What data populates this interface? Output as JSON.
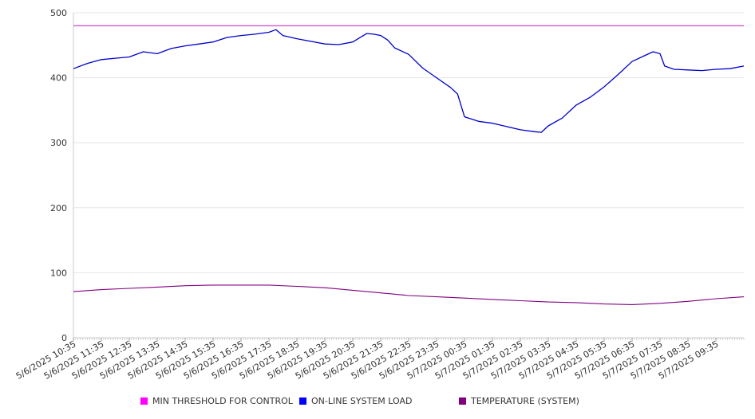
{
  "colors": {
    "threshold": "#cc33cc",
    "load": "#0000cc",
    "temperature": "#800080",
    "swatch_threshold": "#ff00ff",
    "swatch_load": "#0000ff",
    "swatch_temperature": "#800080",
    "grid": "#e6e6e6",
    "axis": "#cccccc"
  },
  "legend": {
    "items": [
      {
        "label": "MIN THRESHOLD FOR CONTROL",
        "color": "#ff00ff"
      },
      {
        "label": "ON-LINE SYSTEM LOAD",
        "color": "#0000ff"
      },
      {
        "label": "TEMPERATURE (SYSTEM)",
        "color": "#800080"
      }
    ]
  },
  "chart_data": {
    "type": "line",
    "ylim": [
      0,
      500
    ],
    "yticks": [
      "0",
      "100",
      "200",
      "300",
      "400",
      "500"
    ],
    "grid": true,
    "legend_position": "bottom",
    "xlim": [
      "5/6/2025 10:35",
      "5/7/2025 10:35"
    ],
    "x_tick_labels": [
      "5/6/2025 10:35",
      "5/6/2025 11:35",
      "5/6/2025 12:35",
      "5/6/2025 13:35",
      "5/6/2025 14:35",
      "5/6/2025 15:35",
      "5/6/2025 16:35",
      "5/6/2025 17:35",
      "5/6/2025 18:35",
      "5/6/2025 19:35",
      "5/6/2025 20:35",
      "5/6/2025 21:35",
      "5/6/2025 22:35",
      "5/6/2025 23:35",
      "5/7/2025 00:35",
      "5/7/2025 01:35",
      "5/7/2025 02:35",
      "5/7/2025 03:35",
      "5/7/2025 04:35",
      "5/7/2025 05:35",
      "5/7/2025 06:35",
      "5/7/2025 07:35",
      "5/7/2025 08:35",
      "5/7/2025 09:35"
    ],
    "series": [
      {
        "name": "MIN THRESHOLD FOR CONTROL",
        "x": [
          "5/6/2025 10:35",
          "5/7/2025 10:35"
        ],
        "values": [
          480,
          480
        ]
      },
      {
        "name": "ON-LINE SYSTEM LOAD",
        "x": [
          "5/6/2025 10:35",
          "5/6/2025 11:05",
          "5/6/2025 11:35",
          "5/6/2025 12:05",
          "5/6/2025 12:35",
          "5/6/2025 13:05",
          "5/6/2025 13:35",
          "5/6/2025 14:05",
          "5/6/2025 14:35",
          "5/6/2025 15:05",
          "5/6/2025 15:35",
          "5/6/2025 16:05",
          "5/6/2025 16:35",
          "5/6/2025 17:05",
          "5/6/2025 17:35",
          "5/6/2025 17:50",
          "5/6/2025 18:05",
          "5/6/2025 18:35",
          "5/6/2025 19:05",
          "5/6/2025 19:35",
          "5/6/2025 20:05",
          "5/6/2025 20:35",
          "5/6/2025 21:05",
          "5/6/2025 21:20",
          "5/6/2025 21:35",
          "5/6/2025 21:50",
          "5/6/2025 22:05",
          "5/6/2025 22:35",
          "5/6/2025 23:05",
          "5/6/2025 23:35",
          "5/7/2025 00:05",
          "5/7/2025 00:20",
          "5/7/2025 00:35",
          "5/7/2025 01:05",
          "5/7/2025 01:35",
          "5/7/2025 02:05",
          "5/7/2025 02:35",
          "5/7/2025 03:05",
          "5/7/2025 03:20",
          "5/7/2025 03:35",
          "5/7/2025 04:05",
          "5/7/2025 04:35",
          "5/7/2025 05:05",
          "5/7/2025 05:35",
          "5/7/2025 06:05",
          "5/7/2025 06:35",
          "5/7/2025 07:05",
          "5/7/2025 07:20",
          "5/7/2025 07:35",
          "5/7/2025 07:45",
          "5/7/2025 08:05",
          "5/7/2025 08:35",
          "5/7/2025 09:05",
          "5/7/2025 09:35",
          "5/7/2025 10:05",
          "5/7/2025 10:35"
        ],
        "values": [
          414,
          422,
          428,
          430,
          432,
          440,
          437,
          445,
          449,
          452,
          455,
          462,
          465,
          467,
          470,
          474,
          465,
          460,
          456,
          452,
          451,
          455,
          468,
          467,
          465,
          458,
          446,
          436,
          415,
          400,
          385,
          375,
          340,
          333,
          330,
          325,
          320,
          317,
          316,
          326,
          338,
          358,
          370,
          386,
          405,
          425,
          435,
          440,
          437,
          418,
          413,
          412,
          411,
          413,
          414,
          418
        ]
      },
      {
        "name": "TEMPERATURE (SYSTEM)",
        "x": [
          "5/6/2025 10:35",
          "5/6/2025 11:35",
          "5/6/2025 12:35",
          "5/6/2025 13:35",
          "5/6/2025 14:35",
          "5/6/2025 15:35",
          "5/6/2025 16:35",
          "5/6/2025 17:35",
          "5/6/2025 18:35",
          "5/6/2025 19:35",
          "5/6/2025 20:35",
          "5/6/2025 21:35",
          "5/6/2025 22:35",
          "5/6/2025 23:35",
          "5/7/2025 00:35",
          "5/7/2025 01:35",
          "5/7/2025 02:35",
          "5/7/2025 03:35",
          "5/7/2025 04:35",
          "5/7/2025 05:35",
          "5/7/2025 06:35",
          "5/7/2025 07:35",
          "5/7/2025 08:35",
          "5/7/2025 09:35",
          "5/7/2025 10:35"
        ],
        "values": [
          71,
          74,
          76,
          78,
          80,
          81,
          81,
          81,
          79,
          77,
          73,
          69,
          65,
          63,
          61,
          59,
          57,
          55,
          54,
          52,
          51,
          53,
          56,
          60,
          63
        ]
      }
    ]
  }
}
